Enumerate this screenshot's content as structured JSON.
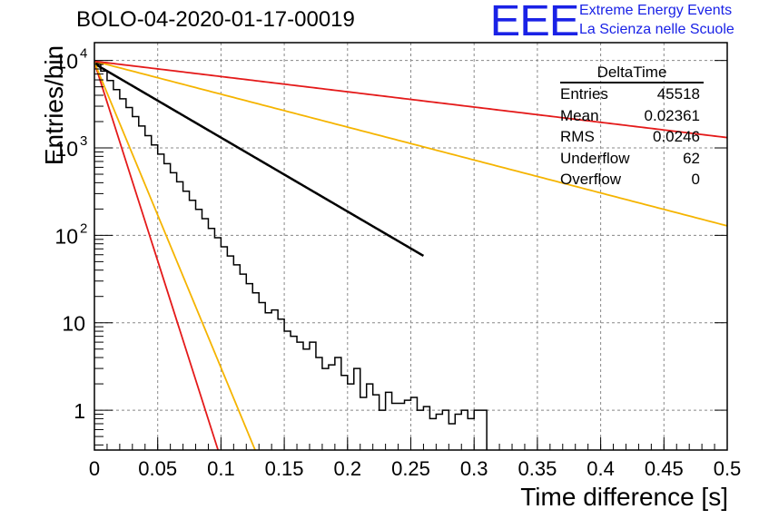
{
  "title": "BOLO-04-2020-01-17-00019",
  "logo": {
    "mark": "EEE",
    "line1": "Extreme Energy Events",
    "line2": "La Scienza nelle Scuole"
  },
  "stats": {
    "name": "DeltaTime",
    "rows": [
      {
        "label": "Entries",
        "value": "45518"
      },
      {
        "label": "Mean",
        "value": "0.02361"
      },
      {
        "label": "RMS",
        "value": "0.0246"
      },
      {
        "label": "Underflow",
        "value": "62"
      },
      {
        "label": "Overflow",
        "value": "0"
      }
    ]
  },
  "chart_data": {
    "type": "line",
    "xlabel": "Time difference [s]",
    "ylabel": "Entries/bin",
    "xlim": [
      0,
      0.5
    ],
    "ylim": [
      0.35,
      16000
    ],
    "ylog": true,
    "grid": true,
    "xticks": [
      "0",
      "0.05",
      "0.1",
      "0.15",
      "0.2",
      "0.25",
      "0.3",
      "0.35",
      "0.4",
      "0.45",
      "0.5"
    ],
    "yticks": [
      {
        "value": 1,
        "label": "1"
      },
      {
        "value": 10,
        "label": "10"
      },
      {
        "value": 100,
        "label": "10",
        "exp": "2"
      },
      {
        "value": 1000,
        "label": "10",
        "exp": "3"
      },
      {
        "value": 10000,
        "label": "10",
        "exp": "4"
      }
    ],
    "histogram": {
      "name": "DeltaTime",
      "bin_width": 0.005,
      "counts": [
        9300,
        7550,
        5900,
        4650,
        3650,
        2900,
        2280,
        1780,
        1380,
        1080,
        850,
        660,
        520,
        410,
        320,
        252,
        198,
        155,
        120,
        94,
        74,
        58,
        46,
        36,
        28,
        22,
        17,
        13,
        14,
        11,
        8,
        7,
        6,
        5,
        6,
        4,
        3,
        3.3,
        4,
        2.5,
        2,
        3,
        1.4,
        2,
        1.5,
        1,
        1.6,
        1.2,
        1.2,
        1.3,
        1.4,
        1,
        1.1,
        0.8,
        0.9,
        1,
        0.7,
        0.9,
        1,
        0.8,
        1,
        1
      ]
    },
    "curves": [
      {
        "color": "#000000",
        "y0": 9200,
        "slope": -19.47,
        "xmax": 0.26
      },
      {
        "color": "#e41a1a",
        "y0": 9500,
        "slope": -104.5,
        "xmax": 0.12
      },
      {
        "color": "#f5b400",
        "y0": 9500,
        "slope": -80.4,
        "xmax": 0.15
      },
      {
        "color": "#f5b400",
        "y0": 9800,
        "slope": -8.67,
        "xmax": 0.5
      },
      {
        "color": "#e41a1a",
        "y0": 9800,
        "slope": -4.02,
        "xmax": 0.5
      }
    ]
  }
}
